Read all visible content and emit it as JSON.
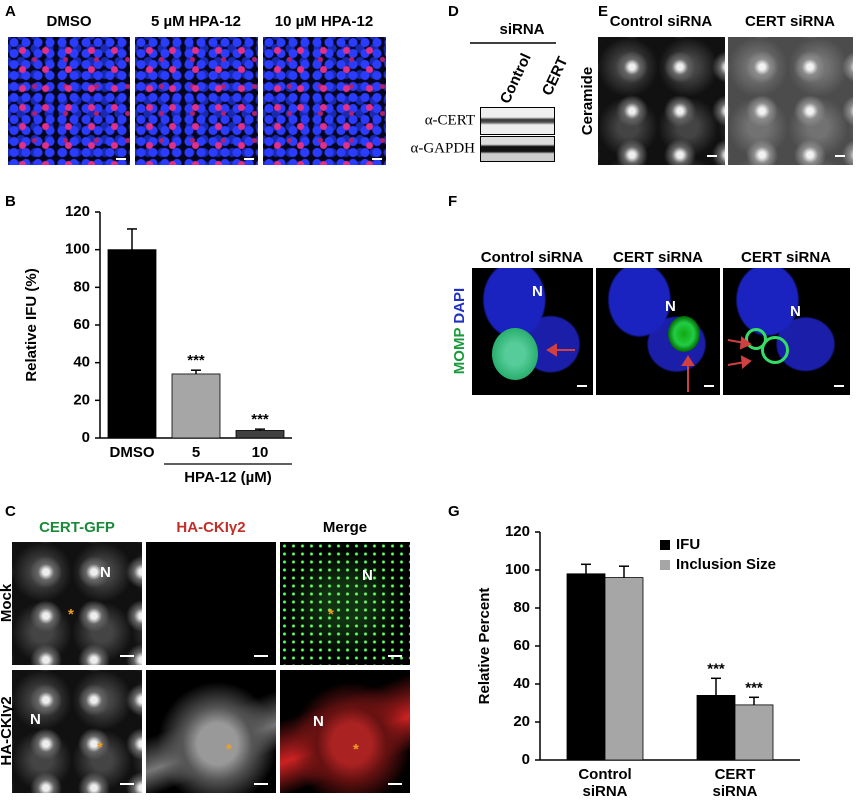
{
  "panels": {
    "A": {
      "letter": "A",
      "labels": [
        "DMSO",
        "5 µM HPA-12",
        "10 µM HPA-12"
      ]
    },
    "B": {
      "letter": "B"
    },
    "C": {
      "letter": "C",
      "columns": [
        "CERT-GFP",
        "HA-CKIγ2",
        "Merge"
      ],
      "rows": [
        "Mock",
        "HA-CKIγ2"
      ],
      "nucleus": "N",
      "asterisk": "*"
    },
    "D": {
      "letter": "D",
      "header": "siRNA",
      "lanes": [
        "Control",
        "CERT"
      ],
      "blots": [
        "α-CERT",
        "α-GAPDH"
      ]
    },
    "E": {
      "letter": "E",
      "labels": [
        "Control siRNA",
        "CERT siRNA"
      ],
      "stain": "Ceramide"
    },
    "F": {
      "letter": "F",
      "labels": [
        "Control siRNA",
        "CERT siRNA",
        "CERT siRNA"
      ],
      "stains": [
        "MOMP",
        "DAPI"
      ],
      "nucleus": "N"
    },
    "G": {
      "letter": "G"
    }
  },
  "chart_data": [
    {
      "type": "bar",
      "y_label": "Relative IFU (%)",
      "categories": [
        "DMSO",
        "5",
        "10"
      ],
      "group_label": "HPA-12 (µM)",
      "values": [
        100,
        34,
        4
      ],
      "errors": [
        11,
        2,
        0.7
      ],
      "colors": [
        "#000000",
        "#a6a6a6",
        "#404040"
      ],
      "significance": [
        null,
        "***",
        "***"
      ],
      "ylim": [
        0,
        120
      ],
      "yticks": [
        0,
        20,
        40,
        60,
        80,
        100,
        120
      ]
    },
    {
      "type": "bar",
      "y_label": "Relative Percent",
      "categories": [
        "Control siRNA",
        "CERT siRNA"
      ],
      "legend": "top-right",
      "series": [
        {
          "name": "IFU",
          "color": "#000000",
          "values": [
            98,
            34
          ],
          "errors": [
            5,
            9
          ],
          "significance": [
            null,
            "***"
          ]
        },
        {
          "name": "Inclusion Size",
          "color": "#a6a6a6",
          "values": [
            96,
            29
          ],
          "errors": [
            6,
            4
          ],
          "significance": [
            null,
            "***"
          ]
        }
      ],
      "ylim": [
        0,
        120
      ],
      "yticks": [
        0,
        20,
        40,
        60,
        80,
        100,
        120
      ]
    }
  ]
}
